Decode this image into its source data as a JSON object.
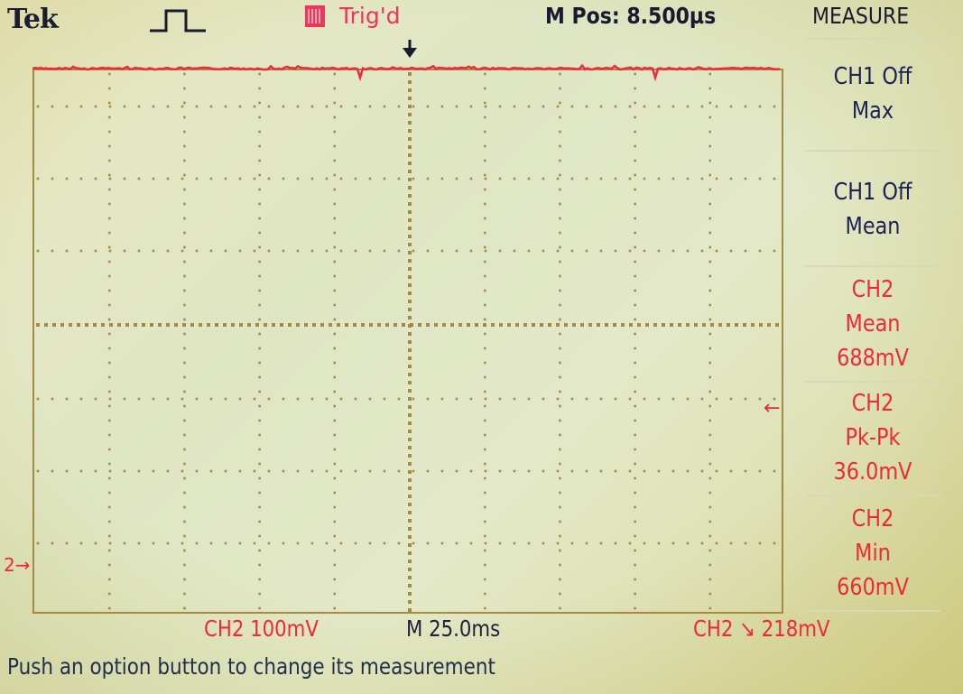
{
  "header": {
    "brand": "Tek",
    "trigger_status": "Trig'd",
    "mpos": "M Pos: 8.500µs",
    "menu_title": "MEASURE"
  },
  "side_buttons": [
    {
      "line1": "CH1 Off",
      "line2": "Max",
      "line3": "",
      "color": "#1c2156"
    },
    {
      "line1": "CH1 Off",
      "line2": "Mean",
      "line3": "",
      "color": "#1c2156"
    },
    {
      "line1": "CH2",
      "line2": "Mean",
      "line3": "688mV",
      "color": "#f0283a"
    },
    {
      "line1": "CH2",
      "line2": "Pk-Pk",
      "line3": "36.0mV",
      "color": "#f0283a"
    },
    {
      "line1": "CH2",
      "line2": "Min",
      "line3": "660mV",
      "color": "#f0283a"
    }
  ],
  "markers": {
    "ch2_ground": "2→",
    "trigger_level": "←"
  },
  "footer": {
    "ch2_scale": "CH2  100mV",
    "timebase": "M 25.0ms",
    "trigger_info": "CH2 ↘ 218mV",
    "status_message": "Push an option button to change its measurement"
  },
  "colors": {
    "trace": "#f0283a",
    "grid": "#a58a44",
    "ch1_text": "#1c2156",
    "ch2_text": "#f0283a"
  },
  "icons": {
    "pulse": "rising-pulse-icon",
    "trigger": "trigger-indicator-icon",
    "trigger_position": "down-arrow-icon"
  }
}
